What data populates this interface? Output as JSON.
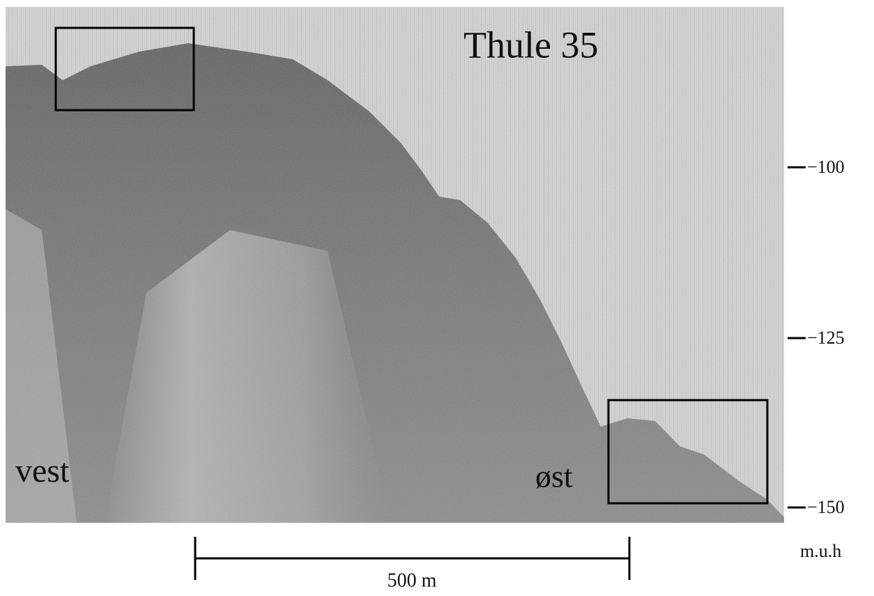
{
  "title": "Thule 35",
  "labels": {
    "west": "vest",
    "east": "øst"
  },
  "depth_axis": {
    "ticks": [
      "−100",
      "−125",
      "−150"
    ],
    "unit": "m.u.h"
  },
  "scale_bar": {
    "label": "500 m"
  }
}
